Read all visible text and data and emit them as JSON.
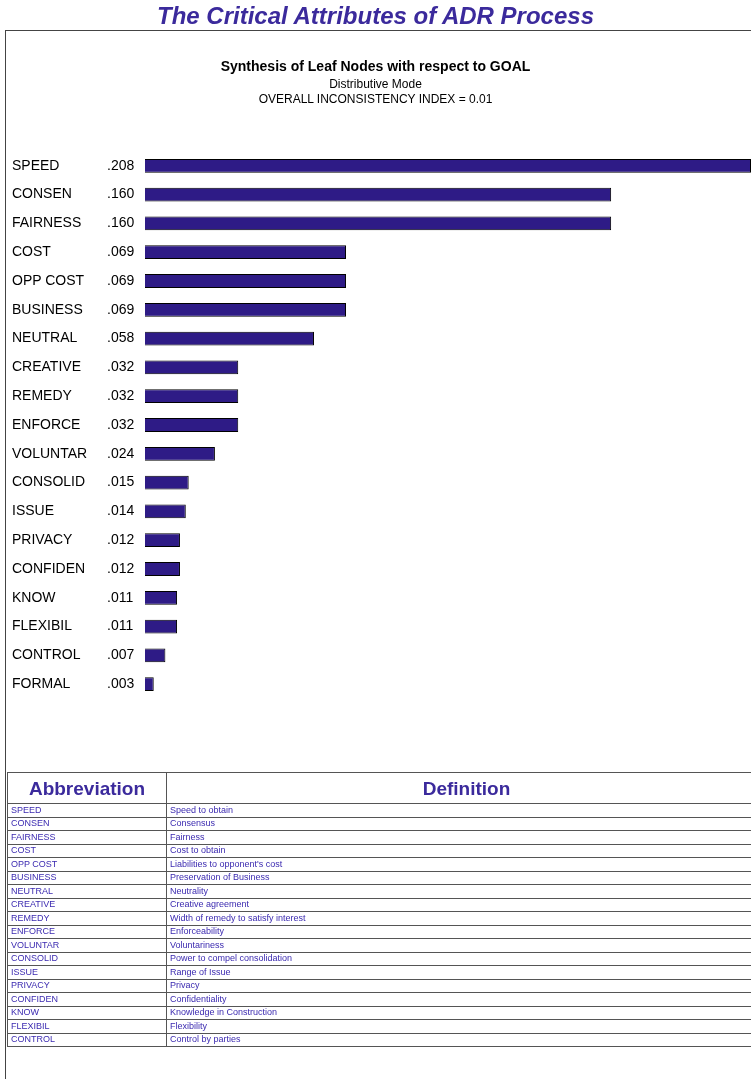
{
  "chart_data": [
    {
      "type": "bar",
      "orientation": "horizontal",
      "title": "The Critical Attributes of ADR Process",
      "subtitle": "Synthesis of Leaf Nodes with respect to GOAL",
      "annotations": [
        "Distributive Mode",
        "OVERALL INCONSISTENCY INDEX =  0.01"
      ],
      "categories": [
        "SPEED",
        "CONSEN",
        "FAIRNESS",
        "COST",
        "OPP COST",
        "BUSINESS",
        "NEUTRAL",
        "CREATIVE",
        "REMEDY",
        "ENFORCE",
        "VOLUNTAR",
        "CONSOLID",
        "ISSUE",
        "PRIVACY",
        "CONFIDEN",
        "KNOW",
        "FLEXIBIL",
        "CONTROL",
        "FORMAL"
      ],
      "values": [
        0.208,
        0.16,
        0.16,
        0.069,
        0.069,
        0.069,
        0.058,
        0.032,
        0.032,
        0.032,
        0.024,
        0.015,
        0.014,
        0.012,
        0.012,
        0.011,
        0.011,
        0.007,
        0.003
      ],
      "value_labels": [
        ".208",
        ".160",
        ".160",
        ".069",
        ".069",
        ".069",
        ".058",
        ".032",
        ".032",
        ".032",
        ".024",
        ".015",
        ".014",
        ".012",
        ".012",
        ".011",
        ".011",
        ".007",
        ".003"
      ],
      "color": "#2e1b86",
      "grid": false,
      "legend": false
    },
    {
      "type": "other",
      "xlabel": "Abbreviation",
      "ylabel": "Definition",
      "categories": [
        "SPEED",
        "CONSEN",
        "FAIRNESS",
        "COST",
        "OPP COST",
        "BUSINESS",
        "NEUTRAL",
        "CREATIVE",
        "REMEDY",
        "ENFORCE",
        "VOLUNTAR",
        "CONSOLID",
        "ISSUE",
        "PRIVACY",
        "CONFIDEN",
        "KNOW",
        "FLEXIBIL",
        "CONTROL"
      ],
      "annotations": [
        "Speed to obtain",
        "Consensus",
        "Fairness",
        "Cost to obtain",
        "Liabilities to opponent's cost",
        "Preservation of Business",
        "Neutrality",
        "Creative agreement",
        "Width of remedy to satisfy interest",
        "Enforceability",
        "Voluntariness",
        "Power to compel consolidation",
        "Range of Issue",
        "Privacy",
        "Confidentiality",
        "Knowledge in Construction",
        "Flexibility",
        "Control by parties"
      ]
    }
  ]
}
